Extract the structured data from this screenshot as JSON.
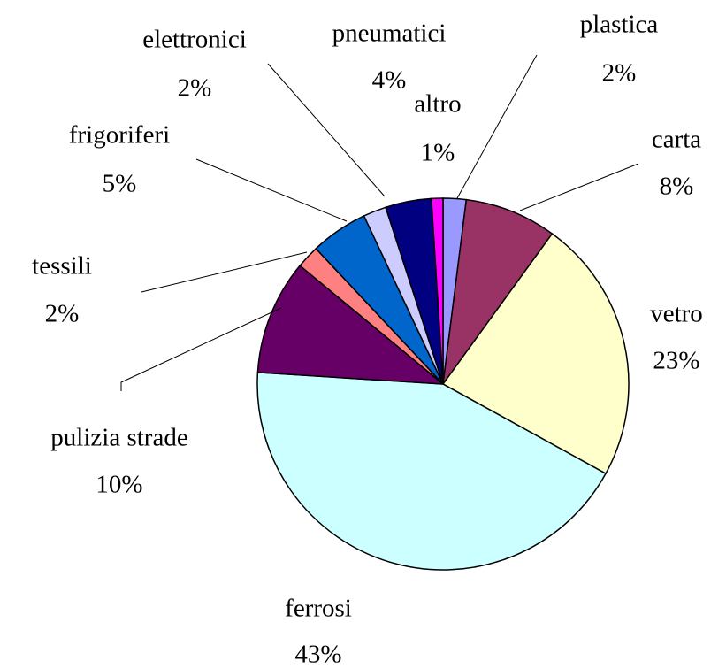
{
  "chart_data": {
    "type": "pie",
    "categories": [
      "plastica",
      "carta",
      "vetro",
      "ferrosi",
      "pulizia strade",
      "tessili",
      "frigoriferi",
      "elettronici",
      "pneumatici",
      "altro"
    ],
    "values": [
      2,
      8,
      23,
      43,
      10,
      2,
      5,
      2,
      4,
      1
    ],
    "value_labels": [
      "2%",
      "8%",
      "23%",
      "43%",
      "10%",
      "2%",
      "5%",
      "2%",
      "4%",
      "1%"
    ],
    "colors": [
      "#9999ff",
      "#993366",
      "#ffffcc",
      "#ccffff",
      "#660066",
      "#ff8080",
      "#0066cc",
      "#ccccff",
      "#000080",
      "#ff00ff"
    ]
  }
}
